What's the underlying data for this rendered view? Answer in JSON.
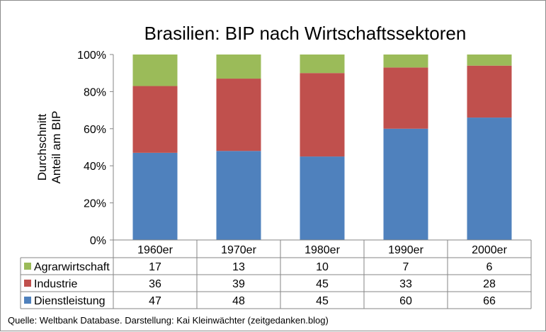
{
  "chart_data": {
    "type": "bar",
    "stacked": true,
    "percent_stacked": true,
    "title": "Brasilien: BIP nach Wirtschaftssektoren",
    "ylabel_line1": "Durchschnitt",
    "ylabel_line2": "Anteil am BIP",
    "xlabel": "",
    "categories": [
      "1960er",
      "1970er",
      "1980er",
      "1990er",
      "2000er"
    ],
    "ylim": [
      0,
      100
    ],
    "yticks": [
      "0%",
      "20%",
      "40%",
      "60%",
      "80%",
      "100%"
    ],
    "series": [
      {
        "name": "Dienstleistung",
        "color": "#4f81bd",
        "values": [
          47,
          48,
          45,
          60,
          66
        ],
        "labels": [
          "47",
          "48",
          "45",
          "60",
          "66"
        ]
      },
      {
        "name": "Industrie",
        "color": "#c0504d",
        "values": [
          36,
          39,
          45,
          33,
          28
        ],
        "labels": [
          "36",
          "39",
          "45",
          "33",
          "28"
        ]
      },
      {
        "name": "Agrarwirtschaft",
        "color": "#9bbb59",
        "values": [
          17,
          13,
          10,
          7,
          6
        ],
        "labels": [
          "17",
          "13",
          "10",
          "7",
          "6"
        ]
      }
    ],
    "table_row_order": [
      "Agrarwirtschaft",
      "Industrie",
      "Dienstleistung"
    ],
    "source": "Quelle: Weltbank Database. Darstellung: Kai Kleinwächter (zeitgedanken.blog)"
  }
}
